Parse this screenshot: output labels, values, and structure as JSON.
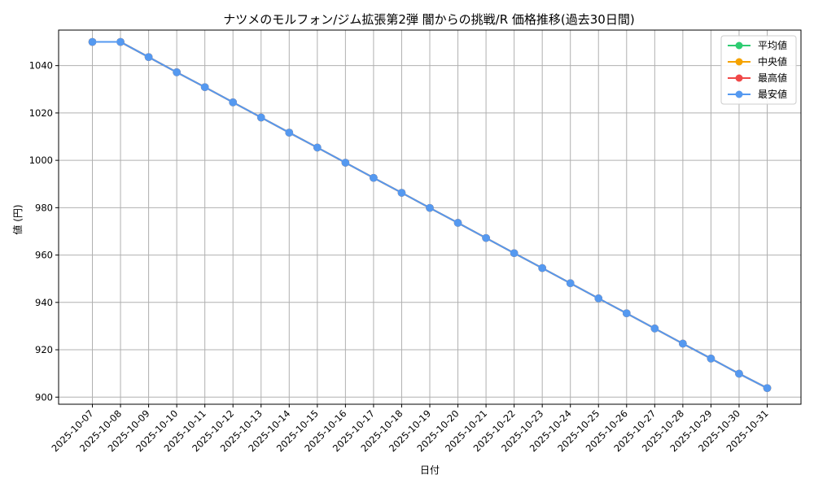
{
  "chart_data": {
    "type": "line",
    "title": "ナツメのモルフォン/ジム拡張第2弾 闇からの挑戦/R 価格推移(過去30日間)",
    "xlabel": "日付",
    "ylabel": "値 (円)",
    "grid": true,
    "legend_position": "top-right",
    "ylim": [
      897,
      1055
    ],
    "yticks": [
      900,
      920,
      940,
      960,
      980,
      1000,
      1020,
      1040
    ],
    "categories": [
      "2025-10-07",
      "2025-10-08",
      "2025-10-09",
      "2025-10-10",
      "2025-10-11",
      "2025-10-12",
      "2025-10-13",
      "2025-10-14",
      "2025-10-15",
      "2025-10-16",
      "2025-10-17",
      "2025-10-18",
      "2025-10-19",
      "2025-10-20",
      "2025-10-21",
      "2025-10-22",
      "2025-10-23",
      "2025-10-24",
      "2025-10-25",
      "2025-10-26",
      "2025-10-27",
      "2025-10-28",
      "2025-10-29",
      "2025-10-30",
      "2025-10-31"
    ],
    "series": [
      {
        "name": "平均値",
        "color": "#2ecc71",
        "values": [
          1050,
          1050,
          1043.6,
          1037.2,
          1030.9,
          1024.5,
          1018.1,
          1011.7,
          1005.4,
          999.0,
          992.6,
          986.3,
          979.9,
          973.6,
          967.2,
          960.8,
          954.5,
          948.1,
          941.7,
          935.4,
          929.0,
          922.6,
          916.3,
          909.9,
          903.8
        ]
      },
      {
        "name": "中央値",
        "color": "#f5a300",
        "values": [
          1050,
          1050,
          1043.6,
          1037.2,
          1030.9,
          1024.5,
          1018.1,
          1011.7,
          1005.4,
          999.0,
          992.6,
          986.3,
          979.9,
          973.6,
          967.2,
          960.8,
          954.5,
          948.1,
          941.7,
          935.4,
          929.0,
          922.6,
          916.3,
          909.9,
          903.8
        ]
      },
      {
        "name": "最高値",
        "color": "#f04848",
        "values": [
          1050,
          1050,
          1043.6,
          1037.2,
          1030.9,
          1024.5,
          1018.1,
          1011.7,
          1005.4,
          999.0,
          992.6,
          986.3,
          979.9,
          973.6,
          967.2,
          960.8,
          954.5,
          948.1,
          941.7,
          935.4,
          929.0,
          922.6,
          916.3,
          909.9,
          903.8
        ]
      },
      {
        "name": "最安値",
        "color": "#5599f0",
        "values": [
          1050,
          1050,
          1043.6,
          1037.2,
          1030.9,
          1024.5,
          1018.1,
          1011.7,
          1005.4,
          999.0,
          992.6,
          986.3,
          979.9,
          973.6,
          967.2,
          960.8,
          954.5,
          948.1,
          941.7,
          935.4,
          929.0,
          922.6,
          916.3,
          909.9,
          903.8
        ]
      }
    ]
  }
}
